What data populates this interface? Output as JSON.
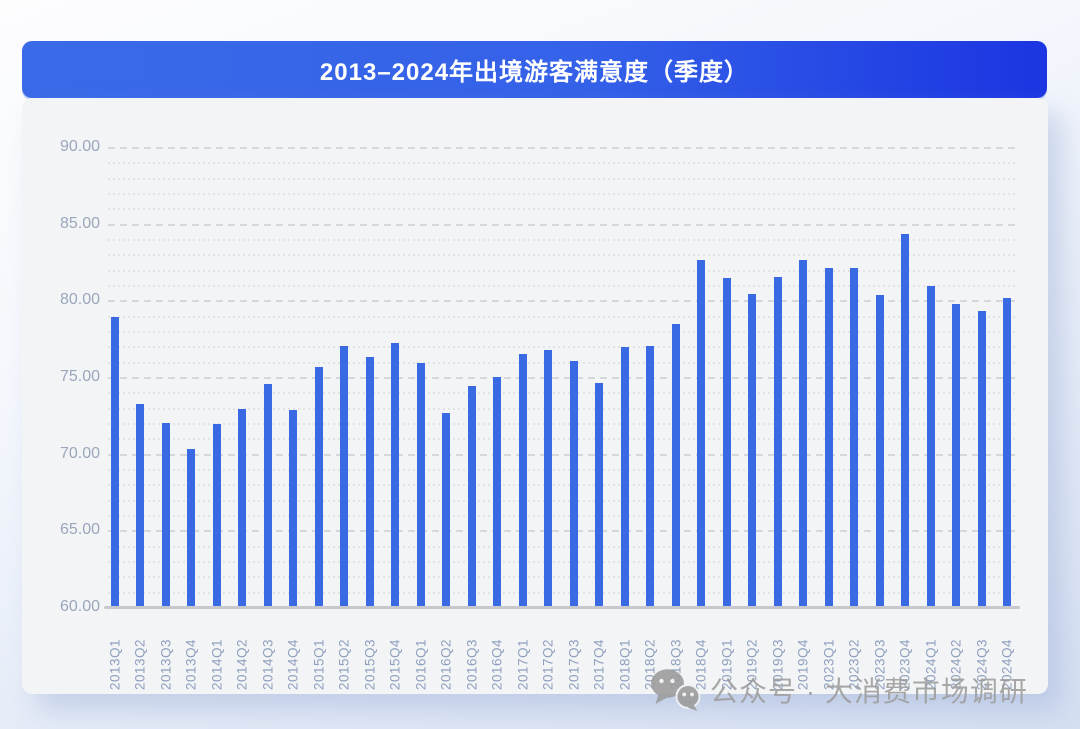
{
  "header": {
    "title": "2013–2024年出境游客满意度（季度）",
    "text_color": "#ffffff",
    "background_gradient": [
      "#3a6ae8",
      "#1b35e2"
    ]
  },
  "y_axis": {
    "ticks": [
      "90.00",
      "85.00",
      "80.00",
      "75.00",
      "70.00",
      "65.00",
      "60.00"
    ]
  },
  "watermark": {
    "icon": "wechat-icon",
    "text": "公众号 · 大消费市场调研",
    "color": "#9d9d9d"
  },
  "colors": {
    "bar": "#3a69e4",
    "card_background": "#f3f4f5",
    "grid_major": "#d6d7da",
    "grid_minor": "#e2e3e6",
    "axis_line": "#c7c8cb",
    "axis_label": "#9aa6bc"
  },
  "chart_data": {
    "type": "bar",
    "title": "2013–2024年出境游客满意度（季度）",
    "categories": [
      "2013Q1",
      "2013Q2",
      "2013Q3",
      "2013Q4",
      "2014Q1",
      "2014Q2",
      "2014Q3",
      "2014Q4",
      "2015Q1",
      "2015Q2",
      "2015Q3",
      "2015Q4",
      "2016Q1",
      "2016Q2",
      "2016Q3",
      "2016Q4",
      "2017Q1",
      "2017Q2",
      "2017Q3",
      "2017Q4",
      "2018Q1",
      "2018Q2",
      "2018Q3",
      "2018Q4",
      "2019Q1",
      "2019Q2",
      "2019Q3",
      "2019Q4",
      "2023Q1",
      "2023Q2",
      "2023Q3",
      "2023Q4",
      "2024Q1",
      "2024Q2",
      "2024Q3",
      "2024Q4"
    ],
    "values": [
      79.0,
      73.3,
      72.1,
      70.4,
      72.0,
      73.0,
      74.6,
      72.9,
      75.7,
      77.1,
      76.4,
      77.3,
      76.0,
      72.7,
      74.5,
      75.1,
      76.6,
      76.8,
      76.1,
      74.7,
      77.0,
      77.1,
      78.5,
      82.7,
      81.5,
      80.5,
      81.6,
      82.7,
      82.2,
      82.2,
      80.4,
      84.4,
      81.0,
      79.8,
      79.4,
      80.2
    ],
    "xlabel": "",
    "ylabel": "",
    "ylim": [
      60,
      90
    ],
    "ytick_major_interval": 5,
    "ytick_minor_interval": 1,
    "grid": "on",
    "legend": "none"
  }
}
